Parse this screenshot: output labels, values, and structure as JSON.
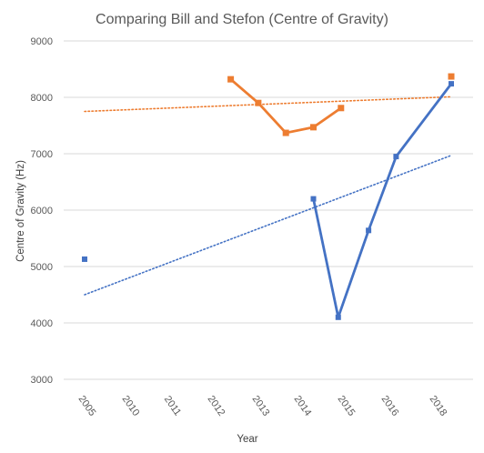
{
  "chart_data": {
    "type": "line",
    "title": "Comparing Bill and Stefon (Centre of Gravity)",
    "xlabel": "Year",
    "ylabel": "Centre of Gravity (Hz)",
    "categories": [
      "2005",
      "2010",
      "2011",
      "2012",
      "2013",
      "2014",
      "2015",
      "2016",
      "2018"
    ],
    "y_ticks": [
      "3000",
      "4000",
      "5000",
      "6000",
      "7000",
      "8000",
      "9000"
    ],
    "ylim": [
      3000,
      9000
    ],
    "grid": true,
    "legend": "none",
    "series": [
      {
        "color": "#4472c4",
        "x": [
          2005,
          2013.3,
          2014.2,
          2015.3,
          2016.3,
          2018.3
        ],
        "y": [
          5130,
          6200,
          4100,
          5640,
          6950,
          8240
        ],
        "connect_from_index": 1
      },
      {
        "color": "#ed7d31",
        "x": [
          2010.3,
          2011.3,
          2012.3,
          2013.3,
          2014.3,
          2018.3
        ],
        "y": [
          8320,
          7900,
          7370,
          7470,
          7810,
          8370
        ],
        "connect_to_index": 4
      }
    ],
    "trendlines": [
      {
        "color": "#4472c4",
        "style": "dotted",
        "x": [
          2005,
          2018.3
        ],
        "y": [
          4500,
          6970
        ]
      },
      {
        "color": "#ed7d31",
        "style": "dotted",
        "x": [
          2005,
          2018.3
        ],
        "y": [
          7750,
          8010
        ]
      }
    ]
  }
}
